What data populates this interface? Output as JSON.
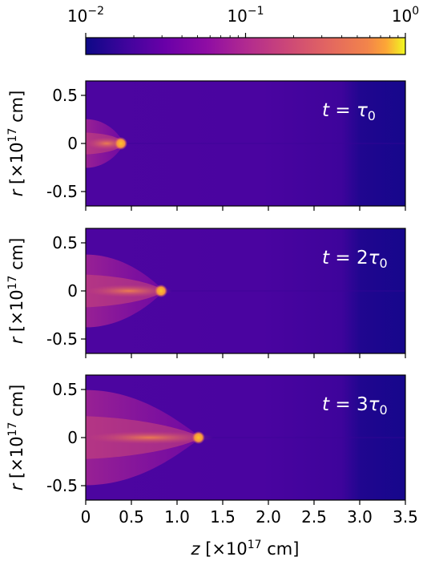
{
  "chart_data": {
    "type": "heatmap",
    "colormap": "plasma",
    "colorbar": {
      "orientation": "horizontal",
      "location": "top",
      "scale": "log",
      "range": [
        0.01,
        1
      ],
      "ticks": [
        {
          "value": 0.01,
          "base": "10",
          "exponent": "−2"
        },
        {
          "value": 0.1,
          "base": "10",
          "exponent": "−1"
        },
        {
          "value": 1,
          "base": "10",
          "exponent": "0"
        }
      ]
    },
    "xlabel": {
      "var": "z",
      "pre": " [×10",
      "exp": "17",
      "post": " cm]"
    },
    "ylabel": {
      "var": "r",
      "pre": " [×10",
      "exp": "17",
      "post": " cm]"
    },
    "xlim": [
      0,
      3.5
    ],
    "ylim": [
      -0.65,
      0.65
    ],
    "xticks": [
      "0",
      "0.5",
      "1.0",
      "1.5",
      "2.0",
      "2.5",
      "3.0",
      "3.5"
    ],
    "xtick_values": [
      0,
      0.5,
      1.0,
      1.5,
      2.0,
      2.5,
      3.0,
      3.5
    ],
    "yticks": [
      "0.5",
      "0",
      "-0.5"
    ],
    "ytick_values": [
      0.5,
      0,
      -0.5
    ],
    "panels": [
      {
        "label_pre": "t = ",
        "label_coef": "",
        "label_sym": "τ",
        "label_sub": "0",
        "jet_head_z": 0.42
      },
      {
        "label_pre": "t = ",
        "label_coef": "2",
        "label_sym": "τ",
        "label_sub": "0",
        "jet_head_z": 0.86
      },
      {
        "label_pre": "t = ",
        "label_coef": "3",
        "label_sym": "τ",
        "label_sub": "0",
        "jet_head_z": 1.27
      }
    ]
  }
}
